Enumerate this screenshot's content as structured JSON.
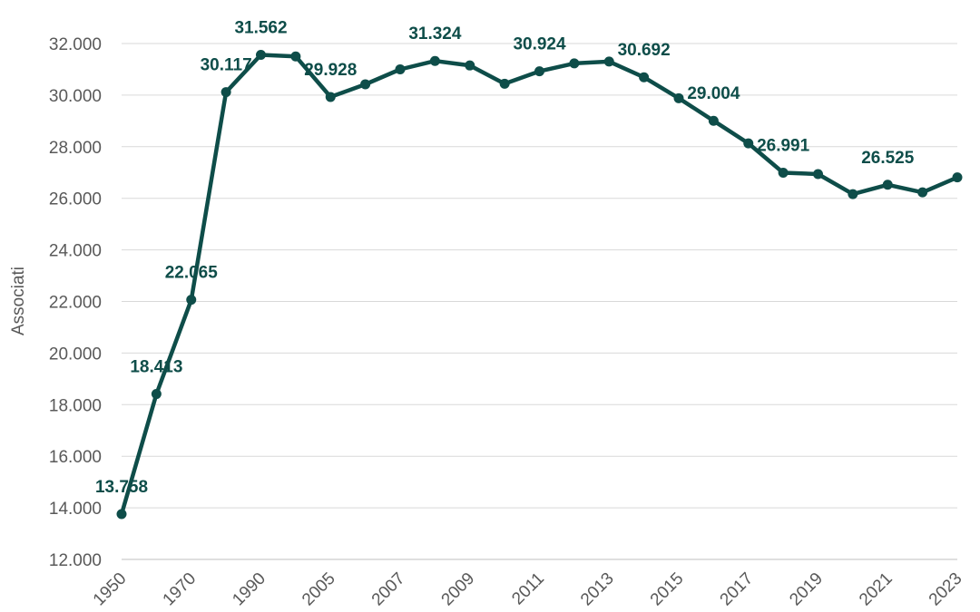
{
  "chart_data": {
    "type": "line",
    "title": "",
    "xlabel": "",
    "ylabel": "Associati",
    "ylim": [
      12000,
      32000
    ],
    "yticks": [
      "12.000",
      "14.000",
      "16.000",
      "18.000",
      "20.000",
      "22.000",
      "24.000",
      "26.000",
      "28.000",
      "30.000",
      "32.000"
    ],
    "x_tick_labels": [
      "1950",
      "1970",
      "1990",
      "2005",
      "2007",
      "2009",
      "2011",
      "2013",
      "2015",
      "2017",
      "2019",
      "2021",
      "2023"
    ],
    "grid": true,
    "legend": "none",
    "colors": {
      "line": "#0e4d49",
      "grid": "#d9d9d9",
      "axis": "#bfbfbf",
      "text": "#595959"
    },
    "series": [
      {
        "x": [
          "1950",
          "1960",
          "1970",
          "1980",
          "1990",
          "2000",
          "2005",
          "2006",
          "2007",
          "2008",
          "2009",
          "2010",
          "2011",
          "2012",
          "2013",
          "2014",
          "2015",
          "2016",
          "2017",
          "2018",
          "2019",
          "2020",
          "2021",
          "2022",
          "2023"
        ],
        "values": [
          13758,
          18413,
          22065,
          30117,
          31562,
          31500,
          29928,
          30420,
          31000,
          31324,
          31150,
          30440,
          30924,
          31230,
          31300,
          30692,
          29880,
          29004,
          28130,
          26991,
          26940,
          26160,
          26525,
          26230,
          26810
        ]
      }
    ],
    "data_labels": [
      {
        "index": 0,
        "text": "13.758"
      },
      {
        "index": 1,
        "text": "18.413"
      },
      {
        "index": 2,
        "text": "22.065"
      },
      {
        "index": 3,
        "text": "30.117"
      },
      {
        "index": 4,
        "text": "31.562"
      },
      {
        "index": 6,
        "text": "29.928"
      },
      {
        "index": 9,
        "text": "31.324"
      },
      {
        "index": 12,
        "text": "30.924"
      },
      {
        "index": 15,
        "text": "30.692"
      },
      {
        "index": 17,
        "text": "29.004"
      },
      {
        "index": 19,
        "text": "26.991"
      },
      {
        "index": 22,
        "text": "26.525"
      }
    ]
  }
}
